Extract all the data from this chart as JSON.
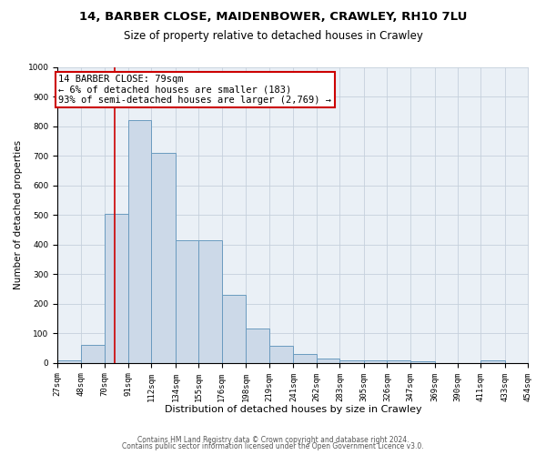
{
  "title1": "14, BARBER CLOSE, MAIDENBOWER, CRAWLEY, RH10 7LU",
  "title2": "Size of property relative to detached houses in Crawley",
  "xlabel": "Distribution of detached houses by size in Crawley",
  "ylabel": "Number of detached properties",
  "bin_edges": [
    27,
    48,
    70,
    91,
    112,
    134,
    155,
    176,
    198,
    219,
    241,
    262,
    283,
    305,
    326,
    347,
    369,
    390,
    411,
    433,
    454
  ],
  "bar_heights": [
    8,
    62,
    505,
    820,
    710,
    415,
    415,
    230,
    115,
    57,
    30,
    14,
    10,
    8,
    8,
    5,
    0,
    0,
    8,
    0
  ],
  "bar_color": "#ccd9e8",
  "bar_edge_color": "#6a9bbf",
  "grid_color": "#c5d0dc",
  "background_color": "#eaf0f6",
  "vline_x": 79,
  "vline_color": "#cc0000",
  "annotation_text": "14 BARBER CLOSE: 79sqm\n← 6% of detached houses are smaller (183)\n93% of semi-detached houses are larger (2,769) →",
  "annotation_box_color": "#cc0000",
  "annotation_facecolor": "white",
  "ylim": [
    0,
    1000
  ],
  "yticks": [
    0,
    100,
    200,
    300,
    400,
    500,
    600,
    700,
    800,
    900,
    1000
  ],
  "footer1": "Contains HM Land Registry data © Crown copyright and database right 2024.",
  "footer2": "Contains public sector information licensed under the Open Government Licence v3.0.",
  "title1_fontsize": 9.5,
  "title2_fontsize": 8.5,
  "xlabel_fontsize": 8,
  "ylabel_fontsize": 7.5,
  "tick_fontsize": 6.5,
  "annotation_fontsize": 7.5,
  "footer_fontsize": 5.5
}
